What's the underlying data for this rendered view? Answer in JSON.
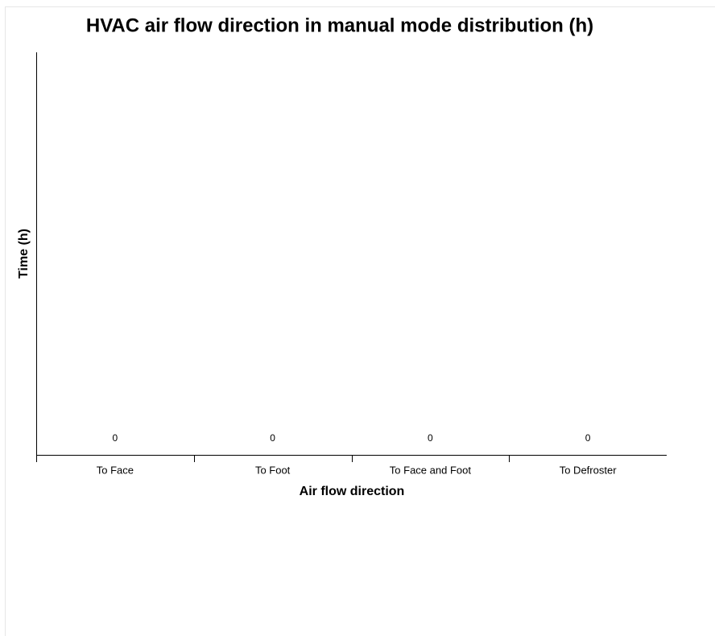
{
  "chart_data": {
    "type": "bar",
    "title": "HVAC air flow direction in manual mode distribution (h)",
    "x_label": "Air flow direction",
    "y_label": "Time (h)",
    "categories": [
      "To Face",
      "To Foot",
      "To Face and Foot",
      "To Defroster"
    ],
    "values": [
      0,
      0,
      0,
      0
    ]
  }
}
